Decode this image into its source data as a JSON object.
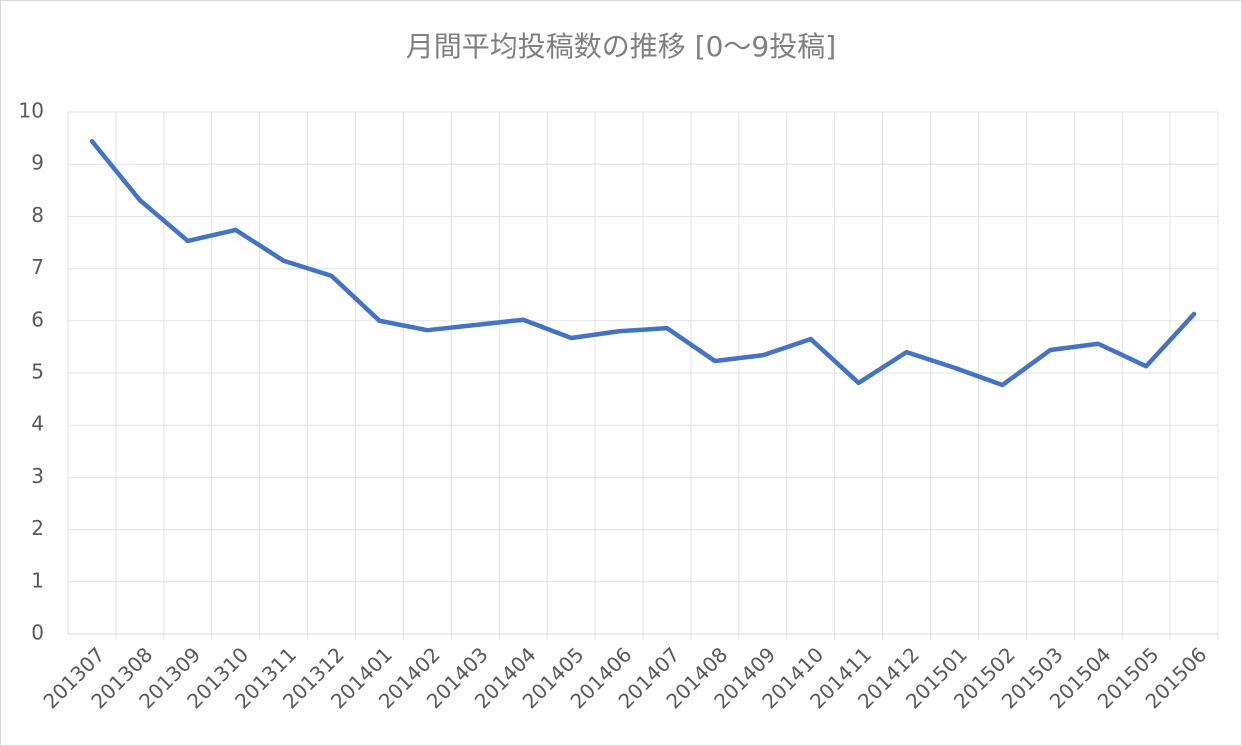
{
  "chart_data": {
    "type": "line",
    "title": "月間平均投稿数の推移 [0～9投稿]",
    "categories": [
      "201307",
      "201308",
      "201309",
      "201310",
      "201311",
      "201312",
      "201401",
      "201402",
      "201403",
      "201404",
      "201405",
      "201406",
      "201407",
      "201408",
      "201409",
      "201410",
      "201411",
      "201412",
      "201501",
      "201502",
      "201503",
      "201504",
      "201505",
      "201506"
    ],
    "series": [
      {
        "color": "#4472c4",
        "values": [
          9.44,
          8.31,
          7.53,
          7.74,
          7.15,
          6.86,
          6.0,
          5.82,
          5.92,
          6.02,
          5.67,
          5.8,
          5.86,
          5.23,
          5.34,
          5.65,
          4.81,
          5.4,
          5.1,
          4.77,
          5.44,
          5.56,
          5.13,
          6.13
        ]
      }
    ],
    "ylim": [
      0,
      10
    ],
    "yticks": [
      0,
      1,
      2,
      3,
      4,
      5,
      6,
      7,
      8,
      9,
      10
    ],
    "grid": true
  }
}
